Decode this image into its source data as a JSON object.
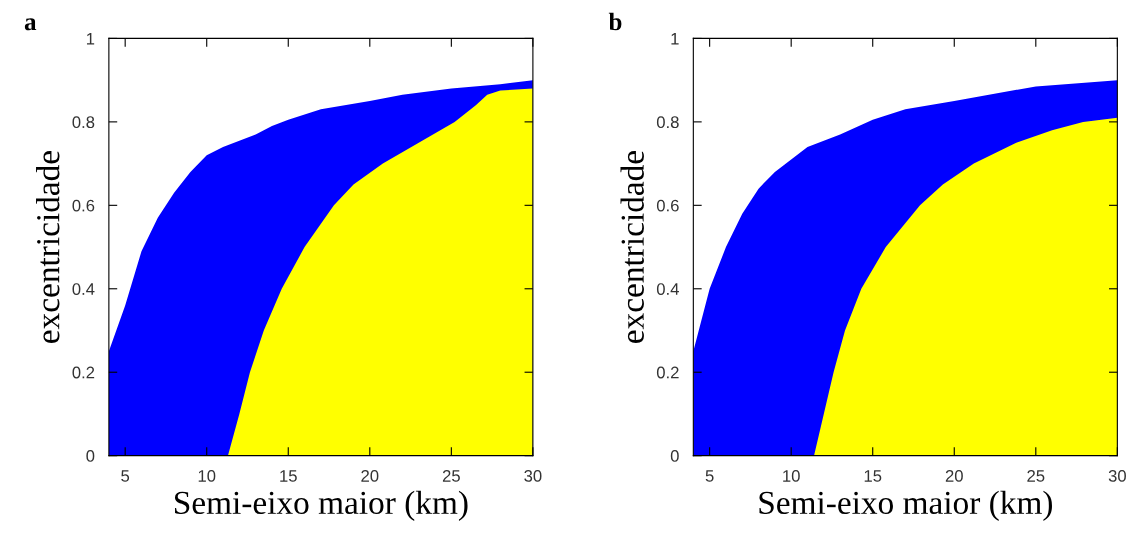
{
  "chart_data": [
    {
      "type": "area",
      "title": "a",
      "xlabel": "Semi-eixo maior (km)",
      "ylabel": "excentricidade",
      "xlim": [
        4,
        30
      ],
      "xticks": [
        5,
        10,
        15,
        20,
        25,
        30
      ],
      "ylim": [
        0,
        1
      ],
      "yticks": [
        0,
        0.2,
        0.4,
        0.6,
        0.8,
        1
      ],
      "grid": false,
      "legend": false,
      "series": [
        {
          "color": "#0000ff",
          "x": [
            4,
            5,
            6,
            7,
            8,
            9,
            10,
            11,
            12,
            13,
            14,
            15,
            17,
            20,
            22,
            25,
            28,
            30
          ],
          "values": [
            0.25,
            0.36,
            0.49,
            0.57,
            0.63,
            0.68,
            0.72,
            0.74,
            0.755,
            0.77,
            0.79,
            0.805,
            0.83,
            0.85,
            0.865,
            0.88,
            0.89,
            0.9
          ]
        },
        {
          "color": "#ffff00",
          "x": [
            11.3,
            12,
            12.65,
            13.5,
            14.6,
            16,
            17.8,
            19,
            20.8,
            23,
            25.2,
            26.5,
            27.2,
            28,
            30
          ],
          "values": [
            0,
            0.1,
            0.2,
            0.3,
            0.4,
            0.5,
            0.6,
            0.65,
            0.7,
            0.75,
            0.8,
            0.84,
            0.865,
            0.875,
            0.88
          ]
        }
      ]
    },
    {
      "type": "area",
      "title": "b",
      "xlabel": "Semi-eixo maior (km)",
      "ylabel": "excentricidade",
      "xlim": [
        4,
        30
      ],
      "xticks": [
        5,
        10,
        15,
        20,
        25,
        30
      ],
      "ylim": [
        0,
        1
      ],
      "yticks": [
        0,
        0.2,
        0.4,
        0.6,
        0.8,
        1
      ],
      "grid": false,
      "legend": false,
      "series": [
        {
          "color": "#0000ff",
          "x": [
            4,
            5,
            6,
            7,
            8,
            9,
            10,
            11,
            12,
            13,
            15,
            17,
            20,
            25,
            30
          ],
          "values": [
            0.25,
            0.4,
            0.5,
            0.58,
            0.64,
            0.68,
            0.71,
            0.74,
            0.755,
            0.77,
            0.805,
            0.83,
            0.85,
            0.885,
            0.9
          ]
        },
        {
          "color": "#ffff00",
          "x": [
            11.4,
            12,
            12.6,
            13.3,
            14.3,
            15.8,
            17.9,
            19.3,
            21.2,
            23.8,
            26,
            27.9,
            30
          ],
          "values": [
            0,
            0.1,
            0.2,
            0.3,
            0.4,
            0.5,
            0.6,
            0.65,
            0.7,
            0.75,
            0.78,
            0.8,
            0.81
          ]
        }
      ]
    }
  ]
}
